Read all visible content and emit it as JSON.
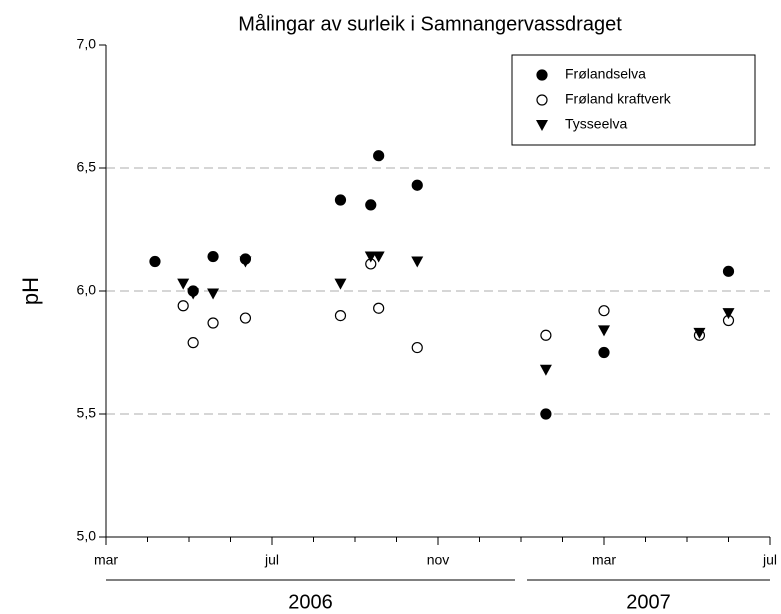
{
  "chart_data": {
    "type": "scatter",
    "title": "Målingar av surleik i Samnangervassdraget",
    "y_label": "pH",
    "xlim": [
      3,
      19
    ],
    "xticks": [
      {
        "value": 3,
        "label": "mar"
      },
      {
        "value": 7,
        "label": "jul"
      },
      {
        "value": 11,
        "label": "nov"
      },
      {
        "value": 15,
        "label": "mar"
      },
      {
        "value": 19,
        "label": "jul"
      }
    ],
    "xminorticks": [
      4,
      5,
      6,
      8,
      9,
      10,
      12,
      13,
      14,
      16,
      17,
      18
    ],
    "year_groups": [
      {
        "label": "2006",
        "range": [
          3,
          13
        ]
      },
      {
        "label": "2007",
        "range": [
          13,
          19
        ]
      }
    ],
    "ylim": [
      5.0,
      7.0
    ],
    "yticks": [
      {
        "value": 5.0,
        "label": "5,0"
      },
      {
        "value": 5.5,
        "label": "5,5"
      },
      {
        "value": 6.0,
        "label": "6,0"
      },
      {
        "value": 6.5,
        "label": "6,5"
      },
      {
        "value": 7.0,
        "label": "7,0"
      }
    ],
    "grid": true,
    "legend": "top-right",
    "series": [
      {
        "name": "Frølandselva",
        "marker": "filled-circle",
        "color": "#000000",
        "x": [
          4.18,
          5.1,
          5.58,
          6.36,
          8.65,
          9.57,
          9.38,
          10.5,
          13.6,
          15.0,
          18.0
        ],
        "values": [
          6.12,
          6.0,
          6.14,
          6.13,
          6.37,
          6.55,
          6.35,
          6.43,
          5.5,
          5.75,
          6.08
        ]
      },
      {
        "name": "Frøland kraftverk",
        "marker": "open-circle",
        "color": "#000000",
        "x": [
          4.86,
          5.1,
          5.58,
          6.36,
          8.65,
          9.57,
          9.38,
          10.5,
          13.6,
          15.0,
          17.3,
          18.0
        ],
        "values": [
          5.94,
          5.79,
          5.87,
          5.89,
          5.9,
          5.93,
          6.11,
          5.77,
          5.82,
          5.92,
          5.82,
          5.88
        ]
      },
      {
        "name": "Tysseelva",
        "marker": "triangle-down",
        "color": "#000000",
        "x": [
          4.86,
          5.1,
          5.58,
          6.36,
          8.65,
          9.57,
          9.38,
          10.5,
          13.6,
          15.0,
          17.3,
          18.0
        ],
        "values": [
          6.03,
          5.99,
          5.99,
          6.12,
          6.03,
          6.14,
          6.14,
          6.12,
          5.68,
          5.84,
          5.83,
          5.91
        ]
      }
    ]
  }
}
